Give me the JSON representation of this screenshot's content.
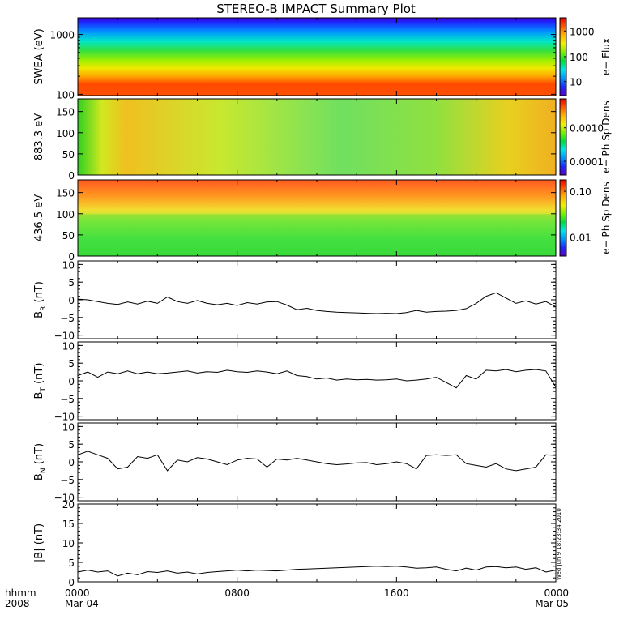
{
  "title": "STEREO-B IMPACT Summary Plot",
  "timestamp": "Wed Jun 9 18:23:34 2010",
  "colors": {
    "ink": "#000000",
    "rainbow": [
      "#5b00c8",
      "#1e28ff",
      "#0096ff",
      "#00e6e6",
      "#00dc3c",
      "#78f000",
      "#f0f000",
      "#ffb400",
      "#ff5a00",
      "#e60000"
    ]
  },
  "chart_data": [
    {
      "type": "heatmap",
      "ylabel": "SWEA (eV)",
      "yscale": "log",
      "ylim": [
        95,
        1900
      ],
      "yticks": [
        "100",
        "1000"
      ],
      "colorbar": {
        "label": "e− Flux",
        "scale": "log",
        "ticks": [
          "10",
          "100",
          "1000"
        ]
      },
      "description_values": {
        "energy_low_flux": 1000,
        "energy_high_flux": 150
      }
    },
    {
      "type": "heatmap",
      "ylabel": "883.3 eV",
      "ylim": [
        0,
        180
      ],
      "yticks": [
        "0",
        "50",
        "100",
        "150"
      ],
      "colorbar": {
        "label": "e− Ph Sp Dens",
        "scale": "log",
        "ticks": [
          "0.0001",
          "0.0010"
        ]
      }
    },
    {
      "type": "heatmap",
      "ylabel": "436.5 eV",
      "ylim": [
        0,
        180
      ],
      "yticks": [
        "0",
        "50",
        "100",
        "150"
      ],
      "colorbar": {
        "label": "e− Ph Sp Dens",
        "scale": "log",
        "ticks": [
          "0.01",
          "0.10"
        ]
      }
    },
    {
      "type": "line",
      "ylabel": "B",
      "ysub": "R",
      "yunit": " (nT)",
      "ylim": [
        -11,
        11
      ],
      "yticks": [
        "−10",
        "−5",
        "0",
        "5",
        "10"
      ],
      "x": [
        0,
        0.5,
        1,
        1.5,
        2,
        2.5,
        3,
        3.5,
        4,
        4.5,
        5,
        5.5,
        6,
        6.5,
        7,
        7.5,
        8,
        8.5,
        9,
        9.5,
        10,
        10.5,
        11,
        11.5,
        12,
        12.5,
        13,
        13.5,
        14,
        14.5,
        15,
        15.5,
        16,
        16.5,
        17,
        17.5,
        18,
        18.5,
        19,
        19.5,
        20,
        20.5,
        21,
        21.5,
        22,
        22.5,
        23,
        23.5,
        24
      ],
      "y": [
        0.2,
        0.0,
        -0.5,
        -1.0,
        -1.3,
        -0.6,
        -1.2,
        -0.4,
        -1.0,
        0.8,
        -0.5,
        -1.0,
        -0.2,
        -1.0,
        -1.4,
        -1.0,
        -1.6,
        -0.8,
        -1.2,
        -0.6,
        -0.5,
        -1.5,
        -2.8,
        -2.4,
        -3.0,
        -3.3,
        -3.5,
        -3.6,
        -3.7,
        -3.8,
        -3.9,
        -3.8,
        -3.9,
        -3.6,
        -3.0,
        -3.5,
        -3.3,
        -3.2,
        -3.0,
        -2.5,
        -1.0,
        1.0,
        2.0,
        0.5,
        -1.0,
        -0.3,
        -1.2,
        -0.5,
        -2.0
      ]
    },
    {
      "type": "line",
      "ylabel": "B",
      "ysub": "T",
      "yunit": " (nT)",
      "ylim": [
        -11,
        11
      ],
      "yticks": [
        "−10",
        "−5",
        "0",
        "5",
        "10"
      ],
      "x": [
        0,
        0.5,
        1,
        1.5,
        2,
        2.5,
        3,
        3.5,
        4,
        4.5,
        5,
        5.5,
        6,
        6.5,
        7,
        7.5,
        8,
        8.5,
        9,
        9.5,
        10,
        10.5,
        11,
        11.5,
        12,
        12.5,
        13,
        13.5,
        14,
        14.5,
        15,
        15.5,
        16,
        16.5,
        17,
        17.5,
        18,
        18.5,
        19,
        19.5,
        20,
        20.5,
        21,
        21.5,
        22,
        22.5,
        23,
        23.5,
        24
      ],
      "y": [
        1.5,
        2.5,
        1.0,
        2.5,
        2.0,
        2.8,
        2.0,
        2.5,
        2.0,
        2.2,
        2.5,
        2.8,
        2.2,
        2.6,
        2.4,
        3.0,
        2.6,
        2.4,
        2.8,
        2.5,
        2.0,
        2.8,
        1.5,
        1.2,
        0.5,
        0.8,
        0.2,
        0.5,
        0.3,
        0.4,
        0.2,
        0.3,
        0.5,
        0.0,
        0.2,
        0.5,
        1.0,
        -0.5,
        -2.0,
        1.5,
        0.5,
        3.0,
        2.8,
        3.2,
        2.6,
        3.0,
        3.2,
        2.8,
        -1.8
      ]
    },
    {
      "type": "line",
      "ylabel": "B",
      "ysub": "N",
      "yunit": " (nT)",
      "ylim": [
        -11,
        11
      ],
      "yticks": [
        "−10",
        "−5",
        "0",
        "5",
        "10"
      ],
      "x": [
        0,
        0.5,
        1,
        1.5,
        2,
        2.5,
        3,
        3.5,
        4,
        4.5,
        5,
        5.5,
        6,
        6.5,
        7,
        7.5,
        8,
        8.5,
        9,
        9.5,
        10,
        10.5,
        11,
        11.5,
        12,
        12.5,
        13,
        13.5,
        14,
        14.5,
        15,
        15.5,
        16,
        16.5,
        17,
        17.5,
        18,
        18.5,
        19,
        19.5,
        20,
        20.5,
        21,
        21.5,
        22,
        22.5,
        23,
        23.5,
        24
      ],
      "y": [
        2.0,
        3.0,
        2.0,
        1.0,
        -2.0,
        -1.5,
        1.5,
        1.0,
        2.0,
        -2.5,
        0.5,
        0.0,
        1.2,
        0.8,
        0.0,
        -0.8,
        0.5,
        1.0,
        0.8,
        -1.5,
        0.8,
        0.5,
        1.0,
        0.5,
        0.0,
        -0.5,
        -0.8,
        -0.6,
        -0.3,
        -0.2,
        -0.8,
        -0.5,
        0.0,
        -0.5,
        -2.0,
        1.8,
        2.0,
        1.8,
        2.0,
        -0.5,
        -1.0,
        -1.5,
        -0.5,
        -2.0,
        -2.5,
        -2.0,
        -1.5,
        2.0,
        1.8
      ]
    },
    {
      "type": "line",
      "ylabel": "|B|",
      "ysub": "",
      "yunit": " (nT)",
      "ylim": [
        0,
        20
      ],
      "yticks": [
        "0",
        "5",
        "10",
        "15",
        "20"
      ],
      "x": [
        0,
        0.5,
        1,
        1.5,
        2,
        2.5,
        3,
        3.5,
        4,
        4.5,
        5,
        5.5,
        6,
        6.5,
        7,
        7.5,
        8,
        8.5,
        9,
        9.5,
        10,
        10.5,
        11,
        11.5,
        12,
        12.5,
        13,
        13.5,
        14,
        14.5,
        15,
        15.5,
        16,
        16.5,
        17,
        17.5,
        18,
        18.5,
        19,
        19.5,
        20,
        20.5,
        21,
        21.5,
        22,
        22.5,
        23,
        23.5,
        24
      ],
      "y": [
        2.5,
        3.0,
        2.5,
        2.8,
        1.5,
        2.2,
        1.8,
        2.6,
        2.4,
        2.8,
        2.2,
        2.5,
        2.0,
        2.4,
        2.6,
        2.8,
        3.0,
        2.8,
        3.0,
        2.9,
        2.8,
        3.0,
        3.2,
        3.3,
        3.4,
        3.5,
        3.6,
        3.7,
        3.8,
        3.9,
        4.0,
        3.9,
        4.0,
        3.8,
        3.5,
        3.6,
        3.8,
        3.2,
        2.8,
        3.5,
        3.0,
        3.8,
        3.9,
        3.6,
        3.8,
        3.2,
        3.6,
        2.5,
        3.0
      ]
    }
  ],
  "x_axis": {
    "ticks": [
      {
        "time": "0000",
        "date": "Mar 04"
      },
      {
        "time": "0800",
        "date": ""
      },
      {
        "time": "1600",
        "date": ""
      },
      {
        "time": "0000",
        "date": "Mar 05"
      }
    ],
    "left_labels": [
      "hhmm",
      "2008"
    ]
  }
}
